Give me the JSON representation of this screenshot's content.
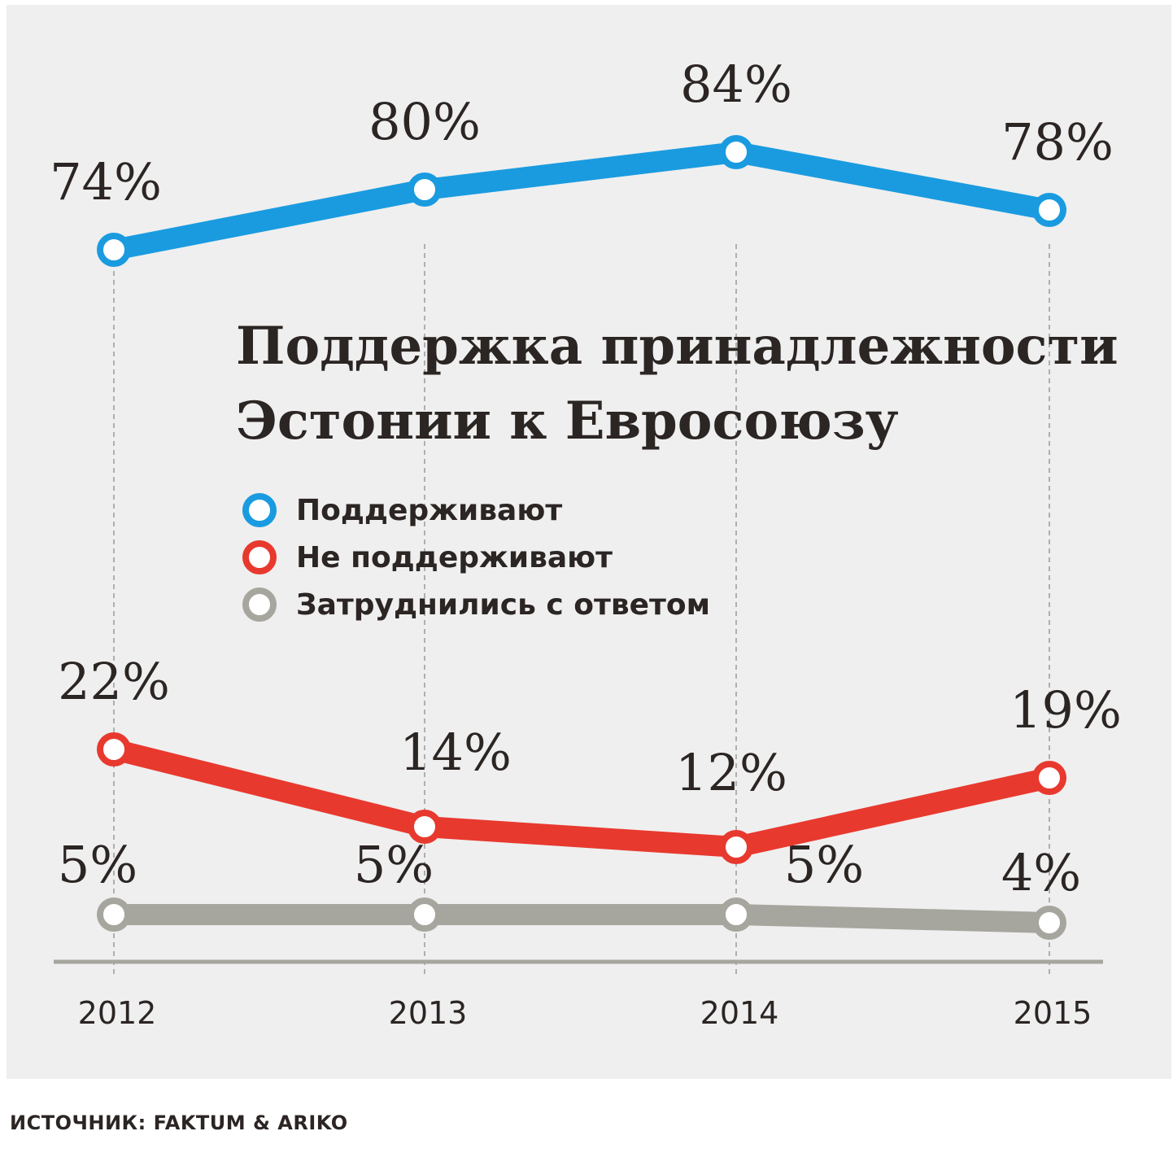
{
  "chart_data": {
    "type": "line",
    "title": "Поддержка принадлежности Эстонии к Евросоюзу",
    "title_lines": [
      "Поддержка принадлежности",
      "Эстонии к Евросоюзу"
    ],
    "categories": [
      "2012",
      "2013",
      "2014",
      "2015"
    ],
    "series": [
      {
        "name": "Поддерживают",
        "color": "#1a9be0",
        "values": [
          74,
          80,
          84,
          78
        ],
        "labels": [
          "74%",
          "80%",
          "84%",
          "78%"
        ]
      },
      {
        "name": "Не поддерживают",
        "color": "#e8392e",
        "values": [
          22,
          14,
          12,
          19
        ],
        "labels": [
          "22%",
          "14%",
          "12%",
          "19%"
        ]
      },
      {
        "name": "Затруднились с ответом",
        "color": "#a7a69e",
        "values": [
          5,
          5,
          5,
          4
        ],
        "labels": [
          "5%",
          "5%",
          "5%",
          "4%"
        ]
      }
    ],
    "ylim": [
      0,
      100
    ],
    "grid": "vertical dashed",
    "legend_position": "center"
  },
  "source": "ИСТОЧНИК: FAKTUM & ARIKO"
}
